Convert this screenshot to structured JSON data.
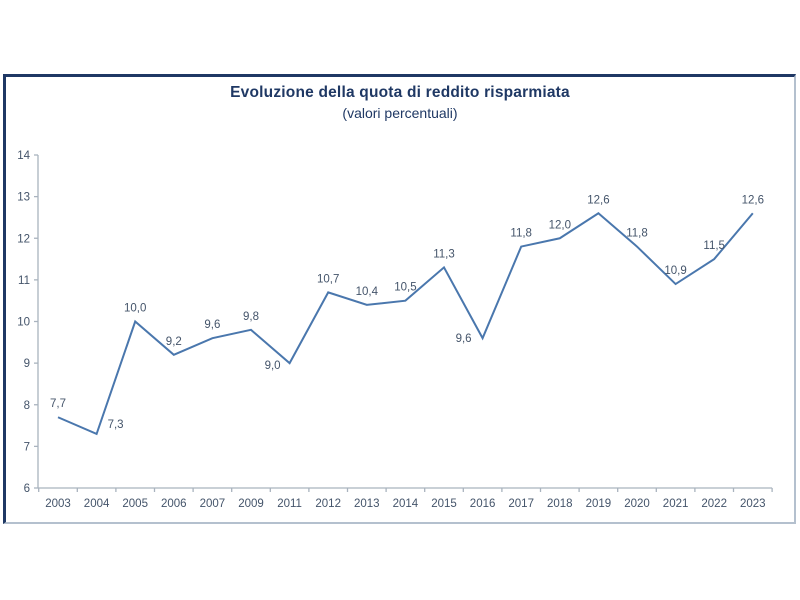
{
  "chart_data": {
    "type": "line",
    "title": "Evoluzione della quota di reddito risparmiata",
    "subtitle": "(valori percentuali)",
    "categories": [
      "2003",
      "2004",
      "2005",
      "2006",
      "2007",
      "2009",
      "2011",
      "2012",
      "2013",
      "2014",
      "2015",
      "2016",
      "2017",
      "2018",
      "2019",
      "2020",
      "2021",
      "2022",
      "2023"
    ],
    "values": [
      7.7,
      7.3,
      10.0,
      9.2,
      9.6,
      9.8,
      9.0,
      10.7,
      10.4,
      10.5,
      11.3,
      9.6,
      11.8,
      12.0,
      12.6,
      11.8,
      10.9,
      11.5,
      12.6
    ],
    "labels": [
      "7,7",
      "7,3",
      "10,0",
      "9,2",
      "9,6",
      "9,8",
      "9,0",
      "10,7",
      "10,4",
      "10,5",
      "11,3",
      "9,6",
      "11,8",
      "12,0",
      "12,6",
      "11,8",
      "10,9",
      "11,5",
      "12,6"
    ],
    "xlabel": "",
    "ylabel": "",
    "ylim": [
      6,
      14
    ],
    "yticks": [
      6,
      7,
      8,
      9,
      10,
      11,
      12,
      13,
      14
    ],
    "grid": false,
    "legend": false,
    "line_color": "#4A77AD",
    "label_color": "#44546A",
    "axis_color": "#A9B3BE",
    "title_color": "#1F3864",
    "frame_dark_color": "#1F3864",
    "frame_light_color": "#B4C0CE"
  }
}
